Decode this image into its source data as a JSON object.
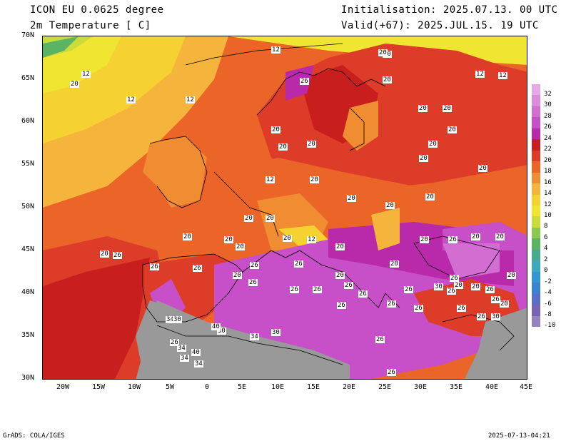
{
  "header": {
    "model": "ICON EU 0.0625 degree",
    "variable": "2m Temperature [ C]",
    "init": "Initialisation: 2025.07.13. 00 UTC",
    "valid": "Valid(+67): 2025.JUL.15. 19 UTC"
  },
  "axes": {
    "lat_labels": [
      "70N",
      "65N",
      "60N",
      "55N",
      "50N",
      "45N",
      "40N",
      "35N",
      "30N"
    ],
    "lon_labels": [
      "20W",
      "15W",
      "10W",
      "5W",
      "0",
      "5E",
      "10E",
      "15E",
      "20E",
      "25E",
      "30E",
      "35E",
      "40E",
      "45E"
    ]
  },
  "colorbar": {
    "labels": [
      "32",
      "30",
      "28",
      "26",
      "24",
      "22",
      "20",
      "18",
      "16",
      "14",
      "12",
      "10",
      "8",
      "6",
      "4",
      "2",
      "0",
      "-2",
      "-4",
      "-6",
      "-8",
      "-10"
    ],
    "colors": [
      "#e6a8e6",
      "#dc8cdc",
      "#d26ed2",
      "#c74fc8",
      "#b92aaa",
      "#c81e1e",
      "#dc3c28",
      "#eb6428",
      "#f08c32",
      "#f5b43c",
      "#f5d232",
      "#f0e632",
      "#c8dc3c",
      "#8cc850",
      "#5ab464",
      "#46aa8c",
      "#3caabe",
      "#3296d2",
      "#3c82d2",
      "#5a6ec8",
      "#7864b4",
      "#9682be"
    ]
  },
  "contour_labels": [
    "20",
    "26",
    "12",
    "20",
    "12",
    "12",
    "12",
    "12",
    "12",
    "20",
    "20",
    "12",
    "20",
    "20",
    "20",
    "20",
    "20",
    "20",
    "20",
    "20",
    "20",
    "20",
    "20",
    "20",
    "20",
    "20",
    "20",
    "20",
    "20",
    "20",
    "20",
    "20",
    "12",
    "20",
    "20",
    "26",
    "26",
    "26",
    "20",
    "26",
    "20",
    "20",
    "26",
    "26",
    "26",
    "20",
    "20",
    "26",
    "26",
    "26",
    "26",
    "26",
    "26",
    "26",
    "30",
    "26",
    "26",
    "26",
    "26",
    "20",
    "20",
    "26",
    "20",
    "26",
    "26",
    "30",
    "34",
    "30",
    "34",
    "26",
    "30",
    "34",
    "34",
    "40",
    "34",
    "40",
    "30",
    "26",
    "30",
    "26",
    "20"
  ],
  "map_colors": {
    "sea_ice_white": "#ffffff",
    "land_gray": "#999999"
  },
  "footer": {
    "left": "GrADS: COLA/IGES",
    "right": "2025-07-13-04:21"
  }
}
